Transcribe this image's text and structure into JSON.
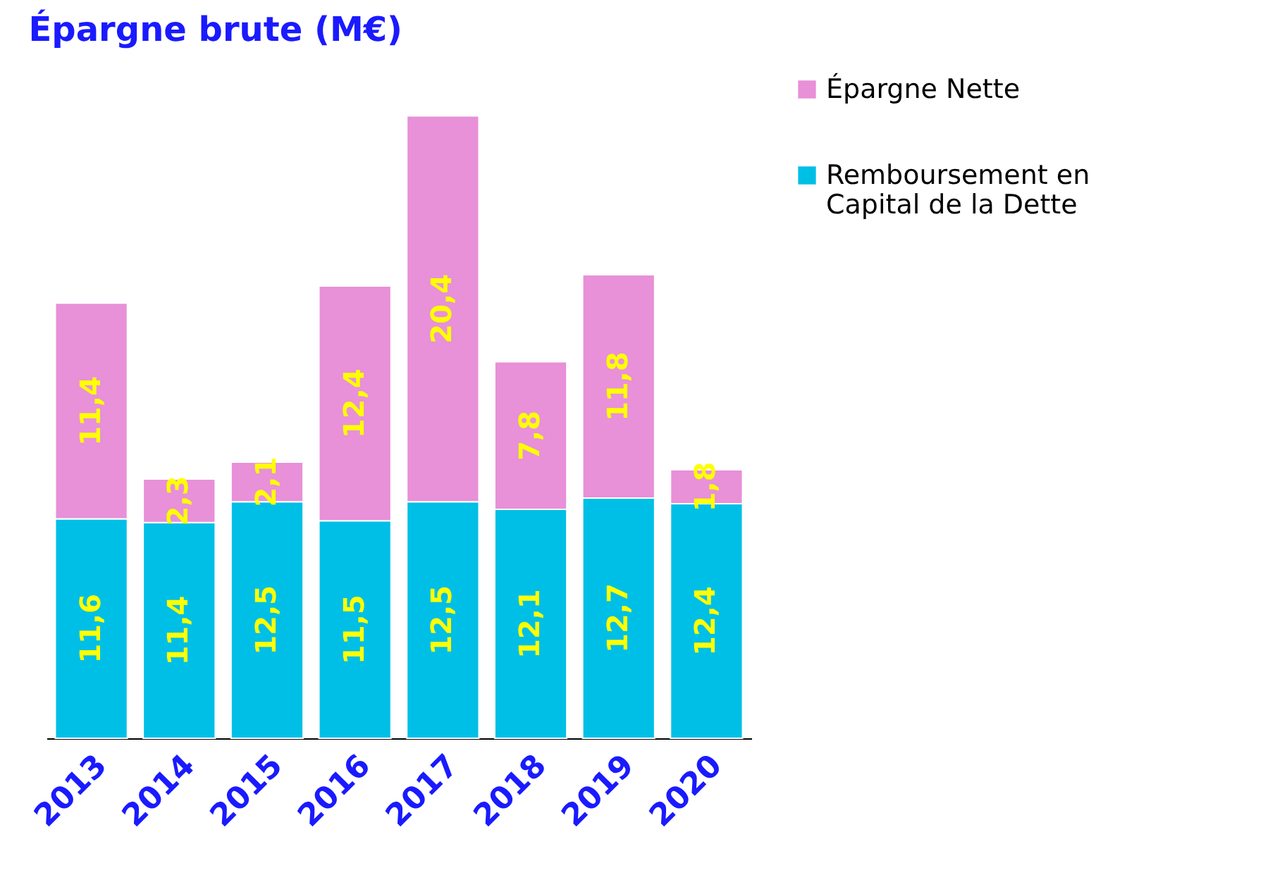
{
  "chart_data": {
    "type": "bar",
    "title": "Épargne brute (M€)",
    "stacked": true,
    "legend": "right",
    "categories": [
      "2013",
      "2014",
      "2015",
      "2016",
      "2017",
      "2018",
      "2019",
      "2020"
    ],
    "series": [
      {
        "name": "Remboursement en Capital de la Dette",
        "color": "#00bfe6",
        "values": [
          11.6,
          11.4,
          12.5,
          11.5,
          12.5,
          12.1,
          12.7,
          12.4
        ],
        "value_labels": [
          "11,6",
          "11,4",
          "12,5",
          "11,5",
          "12,5",
          "12,1",
          "12,7",
          "12,4"
        ]
      },
      {
        "name": "Épargne Nette",
        "color": "#e890d8",
        "values": [
          11.4,
          2.3,
          2.1,
          12.4,
          20.4,
          7.8,
          11.8,
          1.8
        ],
        "value_labels": [
          "11,4",
          "2,3",
          "2,1",
          "12,4",
          "20,4",
          "7,8",
          "11,8",
          "1,8"
        ]
      }
    ]
  }
}
